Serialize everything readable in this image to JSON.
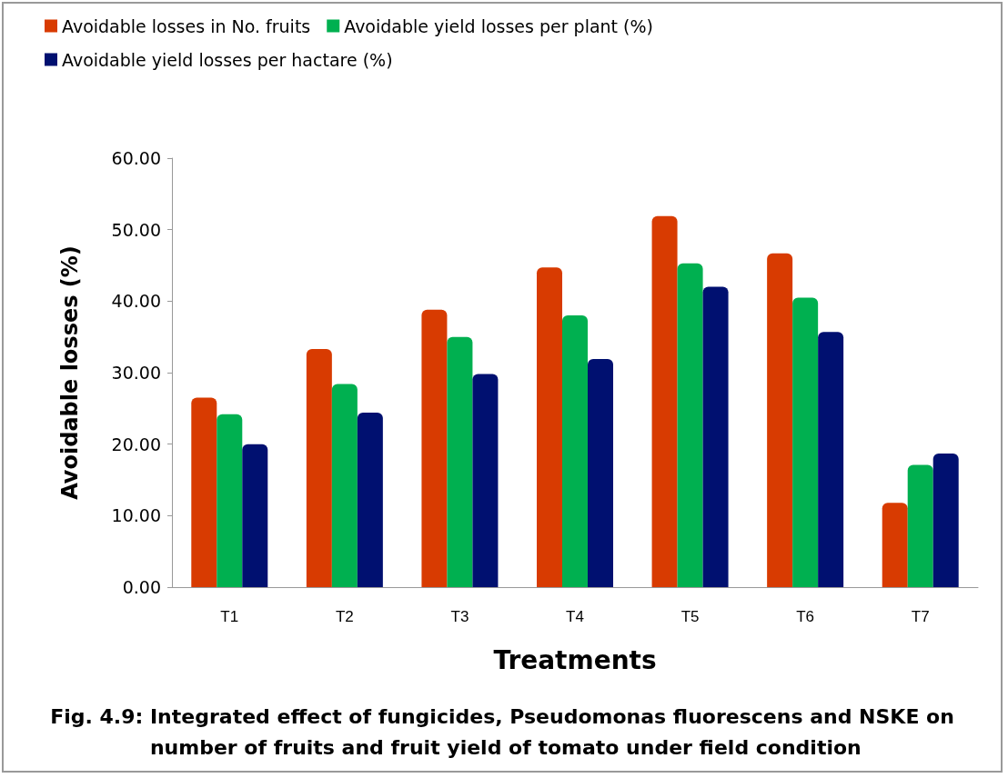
{
  "chart_data": {
    "type": "bar",
    "title": "Fig. 4.9: Integrated effect of fungicides, Pseudomonas fluorescens and NSKE on number of fruits and fruit yield of tomato under field condition",
    "xlabel": "Treatments",
    "ylabel": "Avoidable losses (%)",
    "categories": [
      "T1",
      "T2",
      "T3",
      "T4",
      "T5",
      "T6",
      "T7"
    ],
    "series": [
      {
        "name": "Avoidable losses in No. fruits",
        "color": "#d83b01",
        "values": [
          26.5,
          33.3,
          38.8,
          44.7,
          51.9,
          46.7,
          11.8
        ]
      },
      {
        "name": "Avoidable yield losses per plant (%)",
        "color": "#00b050",
        "values": [
          24.2,
          28.4,
          35.0,
          38.0,
          45.3,
          40.5,
          17.1
        ]
      },
      {
        "name": "Avoidable yield losses per hactare (%)",
        "color": "#001070",
        "values": [
          20.0,
          24.4,
          29.8,
          31.9,
          42.0,
          35.7,
          18.7
        ]
      }
    ],
    "ylim": [
      0,
      60
    ],
    "yticks": [
      {
        "value": 0,
        "label": "0.00"
      },
      {
        "value": 10,
        "label": "10.00"
      },
      {
        "value": 20,
        "label": "20.00"
      },
      {
        "value": 30,
        "label": "30.00"
      },
      {
        "value": 40,
        "label": "40.00"
      },
      {
        "value": 50,
        "label": "50.00"
      },
      {
        "value": 60,
        "label": "60.00"
      }
    ],
    "grid": false,
    "legend": "top"
  }
}
